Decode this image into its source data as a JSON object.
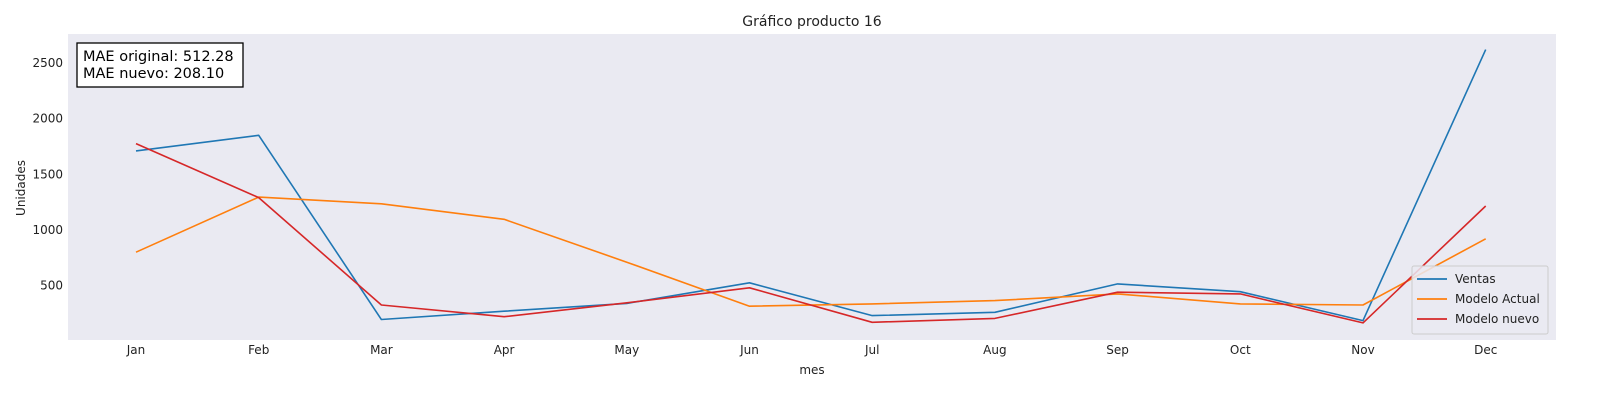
{
  "chart_data": {
    "type": "line",
    "title": "Gráfico producto 16",
    "xlabel": "mes",
    "ylabel": "Unidades",
    "categories": [
      "Jan",
      "Feb",
      "Mar",
      "Apr",
      "May",
      "Jun",
      "Jul",
      "Aug",
      "Sep",
      "Oct",
      "Nov",
      "Dec"
    ],
    "ylim": [
      20,
      2760
    ],
    "yticks": [
      500,
      1000,
      1500,
      2000,
      2500
    ],
    "grid": false,
    "background": "#eaeaf2",
    "legend_position": "lower-right",
    "series": [
      {
        "name": "Ventas",
        "color": "#1f77b4",
        "values": [
          1710,
          1850,
          195,
          270,
          340,
          525,
          230,
          260,
          515,
          445,
          185,
          2620
        ]
      },
      {
        "name": "Modelo Actual",
        "color": "#ff7f0e",
        "values": [
          800,
          1295,
          1235,
          1095,
          710,
          315,
          335,
          365,
          425,
          335,
          325,
          920
        ]
      },
      {
        "name": "Modelo nuevo",
        "color": "#d62728",
        "values": [
          1775,
          1290,
          325,
          220,
          345,
          480,
          170,
          205,
          440,
          425,
          165,
          1215
        ]
      }
    ],
    "annotation": {
      "lines": [
        "MAE original: 512.28",
        "MAE nuevo: 208.10"
      ]
    }
  }
}
